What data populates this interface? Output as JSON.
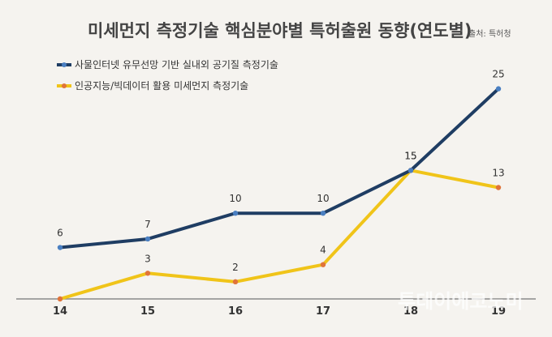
{
  "chart_data": {
    "type": "line",
    "title": "미세먼지 측정기술 핵심분야별 특허출원 동향(연도별)",
    "source": "출처: 특허청",
    "categories": [
      "14",
      "15",
      "16",
      "17",
      "18",
      "19"
    ],
    "ylim": [
      0,
      26
    ],
    "grid": false,
    "legend_position": "top-left",
    "series": [
      {
        "name": "사물인터넷 유무선망 기반 실내외 공기질 측정기술",
        "values": [
          6,
          7,
          10,
          10,
          15,
          25
        ],
        "color": "#1f3d63",
        "marker_color": "#4a7fc1"
      },
      {
        "name": "인공지능/빅데이터 활용 미세먼지 측정기술",
        "values": [
          0,
          3,
          2,
          4,
          15,
          13
        ],
        "color": "#f0c419",
        "marker_color": "#e0743a",
        "labels": [
          "",
          "3",
          "2",
          "4",
          "15",
          "13"
        ]
      }
    ]
  },
  "watermark": "투데이에코노미"
}
